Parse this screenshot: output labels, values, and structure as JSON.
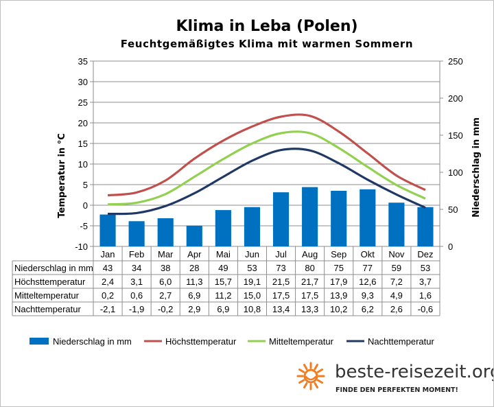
{
  "chart_data": {
    "type": "bar",
    "title": "Klima in Leba (Polen)",
    "subtitle": "Feuchtgemäßigtes Klima mit warmen Sommern",
    "ylabel_left": "Temperatur in °C",
    "ylabel_right": "Niederschlag in mm",
    "ylim_left": [
      -10,
      35
    ],
    "ylim_right": [
      0,
      250
    ],
    "yticks_left": [
      "-10",
      "-5",
      "0",
      "5",
      "10",
      "15",
      "20",
      "25",
      "30",
      "35"
    ],
    "yticks_right": [
      "0",
      "50",
      "100",
      "150",
      "200",
      "250"
    ],
    "grid": true,
    "legend_position": "bottom",
    "categories": [
      "Jan",
      "Feb",
      "Mar",
      "Apr",
      "Mai",
      "Jun",
      "Jul",
      "Aug",
      "Sep",
      "Okt",
      "Nov",
      "Dez"
    ],
    "series": [
      {
        "name": "Niederschlag in mm",
        "kind": "bar",
        "axis": "right",
        "color": "#0070c0",
        "values": [
          43,
          34,
          38,
          28,
          49,
          53,
          73,
          80,
          75,
          77,
          59,
          53
        ],
        "labels": [
          "43",
          "34",
          "38",
          "28",
          "49",
          "53",
          "73",
          "80",
          "75",
          "77",
          "59",
          "53"
        ]
      },
      {
        "name": "Höchsttemperatur",
        "kind": "line",
        "axis": "left",
        "color": "#c0504d",
        "values": [
          2.4,
          3.1,
          6.0,
          11.3,
          15.7,
          19.1,
          21.5,
          21.7,
          17.9,
          12.6,
          7.2,
          3.7
        ],
        "labels": [
          "2,4",
          "3,1",
          "6,0",
          "11,3",
          "15,7",
          "19,1",
          "21,5",
          "21,7",
          "17,9",
          "12,6",
          "7,2",
          "3,7"
        ]
      },
      {
        "name": "Mitteltemperatur",
        "kind": "line",
        "axis": "left",
        "color": "#92d050",
        "values": [
          0.2,
          0.6,
          2.7,
          6.9,
          11.2,
          15.0,
          17.5,
          17.5,
          13.9,
          9.3,
          4.9,
          1.6
        ],
        "labels": [
          "0,2",
          "0,6",
          "2,7",
          "6,9",
          "11,2",
          "15,0",
          "17,5",
          "17,5",
          "13,9",
          "9,3",
          "4,9",
          "1,6"
        ]
      },
      {
        "name": "Nachttemperatur",
        "kind": "line",
        "axis": "left",
        "color": "#1f3864",
        "values": [
          -2.1,
          -1.9,
          -0.2,
          2.9,
          6.9,
          10.8,
          13.4,
          13.3,
          10.2,
          6.2,
          2.6,
          -0.6
        ],
        "labels": [
          "-2,1",
          "-1,9",
          "-0,2",
          "2,9",
          "6,9",
          "10,8",
          "13,4",
          "13,3",
          "10,2",
          "6,2",
          "2,6",
          "-0,6"
        ]
      }
    ]
  },
  "brand": {
    "name": "beste-reisezeit.org",
    "tagline": "FINDE DEN PERFEKTEN MOMENT!",
    "sun_color": "#f47b20",
    "icon": "sun-logo-icon"
  }
}
